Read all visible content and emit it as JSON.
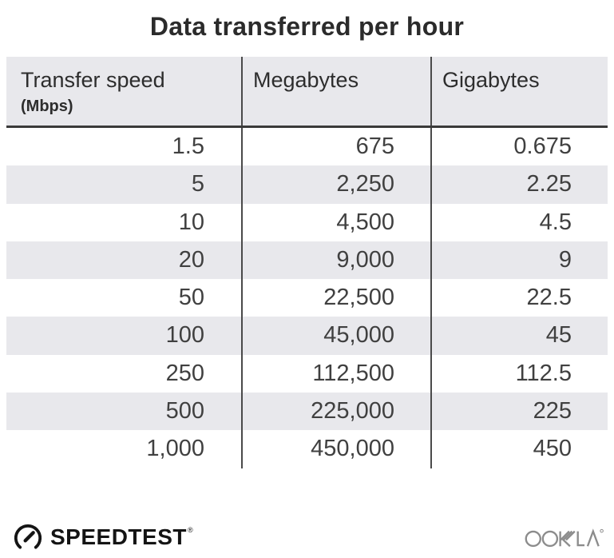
{
  "title": "Data transferred per hour",
  "table": {
    "columns": [
      {
        "label": "Transfer speed",
        "sublabel": "(Mbps)"
      },
      {
        "label": "Megabytes",
        "sublabel": ""
      },
      {
        "label": "Gigabytes",
        "sublabel": ""
      }
    ],
    "rows": [
      [
        "1.5",
        "675",
        "0.675"
      ],
      [
        "5",
        "2,250",
        "2.25"
      ],
      [
        "10",
        "4,500",
        "4.5"
      ],
      [
        "20",
        "9,000",
        "9"
      ],
      [
        "50",
        "22,500",
        "22.5"
      ],
      [
        "100",
        "45,000",
        "45"
      ],
      [
        "250",
        "112,500",
        "112.5"
      ],
      [
        "500",
        "225,000",
        "225"
      ],
      [
        "1,000",
        "450,000",
        "450"
      ]
    ]
  },
  "footer": {
    "speedtest_label": "SPEEDTEST",
    "speedtest_trademark": "®",
    "ookla_label": "OOKLA",
    "speedtest_icon": "gauge-icon",
    "ookla_icon": "ookla-logotype"
  },
  "colors": {
    "background": "#ffffff",
    "header_row_bg": "#e8e8ec",
    "stripe_row_bg": "#e8e8ec",
    "divider": "#4a4a4a",
    "header_underline": "#3a3a3a",
    "title_text": "#2b2b2b",
    "cell_text": "#404040",
    "speedtest_black": "#141414",
    "ookla_gray": "#8c8c8c"
  },
  "chart_data": {
    "type": "table",
    "title": "Data transferred per hour",
    "columns": [
      "Transfer speed (Mbps)",
      "Megabytes",
      "Gigabytes"
    ],
    "rows": [
      [
        1.5,
        675,
        0.675
      ],
      [
        5,
        2250,
        2.25
      ],
      [
        10,
        4500,
        4.5
      ],
      [
        20,
        9000,
        9
      ],
      [
        50,
        22500,
        22.5
      ],
      [
        100,
        45000,
        45
      ],
      [
        250,
        112500,
        112.5
      ],
      [
        500,
        225000,
        225
      ],
      [
        1000,
        450000,
        450
      ]
    ]
  }
}
